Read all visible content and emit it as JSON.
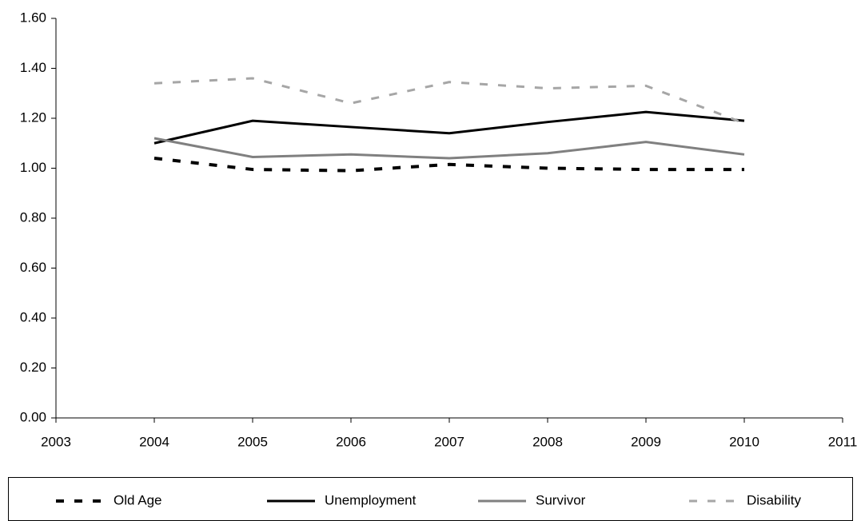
{
  "chart_data": {
    "type": "line",
    "x": [
      2004,
      2005,
      2006,
      2007,
      2008,
      2009,
      2010
    ],
    "series": [
      {
        "name": "Old Age",
        "color": "#000000",
        "line_style": "dashed",
        "values": [
          1.04,
          0.995,
          0.99,
          1.015,
          1.0,
          0.995,
          0.995
        ]
      },
      {
        "name": "Unemployment",
        "color": "#000000",
        "line_style": "solid",
        "values": [
          1.1,
          1.19,
          1.165,
          1.14,
          1.185,
          1.225,
          1.19
        ]
      },
      {
        "name": "Survivor",
        "color": "#808080",
        "line_style": "solid",
        "values": [
          1.12,
          1.045,
          1.055,
          1.04,
          1.06,
          1.105,
          1.055
        ]
      },
      {
        "name": "Disability",
        "color": "#a6a6a6",
        "line_style": "dashed",
        "values": [
          1.34,
          1.36,
          1.26,
          1.345,
          1.32,
          1.33,
          1.18
        ]
      }
    ],
    "xlim": [
      2003,
      2011
    ],
    "xticks": [
      2003,
      2004,
      2005,
      2006,
      2007,
      2008,
      2009,
      2010,
      2011
    ],
    "ylim": [
      0,
      1.6
    ],
    "yticks": [
      {
        "value": 0,
        "label": "0.00"
      },
      {
        "value": 0.2,
        "label": "0.20"
      },
      {
        "value": 0.4,
        "label": "0.40"
      },
      {
        "value": 0.6,
        "label": "0.60"
      },
      {
        "value": 0.8,
        "label": "0.80"
      },
      {
        "value": 1.0,
        "label": "1.00"
      },
      {
        "value": 1.2,
        "label": "1.20"
      },
      {
        "value": 1.4,
        "label": "1.40"
      },
      {
        "value": 1.6,
        "label": "1.60"
      }
    ],
    "grid": false,
    "legend": "bottom"
  }
}
